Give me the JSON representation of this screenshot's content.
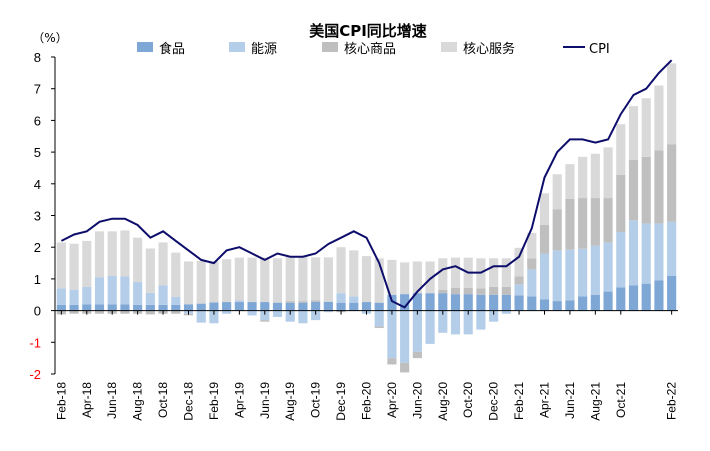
{
  "chart_data": {
    "type": "bar",
    "title": "美国CPI同比增速",
    "unit_label": "（%）",
    "ylim": [
      -2,
      8
    ],
    "yticks": [
      "-2",
      "-1",
      "0",
      "1",
      "2",
      "3",
      "4",
      "5",
      "6",
      "7",
      "8"
    ],
    "negative_tick_color": "#ff0000",
    "x": [
      "Feb-18",
      "Mar-18",
      "Apr-18",
      "May-18",
      "Jun-18",
      "Jul-18",
      "Aug-18",
      "Sep-18",
      "Oct-18",
      "Nov-18",
      "Dec-18",
      "Jan-19",
      "Feb-19",
      "Mar-19",
      "Apr-19",
      "May-19",
      "Jun-19",
      "Jul-19",
      "Aug-19",
      "Sep-19",
      "Oct-19",
      "Nov-19",
      "Dec-19",
      "Jan-20",
      "Feb-20",
      "Mar-20",
      "Apr-20",
      "May-20",
      "Jun-20",
      "Jul-20",
      "Aug-20",
      "Sep-20",
      "Oct-20",
      "Nov-20",
      "Dec-20",
      "Jan-21",
      "Feb-21",
      "Mar-21",
      "Apr-21",
      "May-21",
      "Jun-21",
      "Jul-21",
      "Aug-21",
      "Sep-21",
      "Oct-21",
      "Nov-21",
      "Dec-21",
      "Jan-22",
      "Feb-22"
    ],
    "xtick_labels": [
      "Feb-18",
      "Apr-18",
      "Jun-18",
      "Aug-18",
      "Oct-18",
      "Dec-18",
      "Feb-19",
      "Apr-19",
      "Jun-19",
      "Aug-19",
      "Oct-19",
      "Dec-19",
      "Feb-20",
      "Apr-20",
      "Jun-20",
      "Aug-20",
      "Oct-20",
      "Dec-20",
      "Feb-21",
      "Apr-21",
      "Jun-21",
      "Aug-21",
      "Oct-21",
      "Feb-22"
    ],
    "stacked": true,
    "series": [
      {
        "name": "食品",
        "type": "bar",
        "color": "#7fa7d6",
        "values": [
          0.18,
          0.18,
          0.2,
          0.2,
          0.2,
          0.2,
          0.18,
          0.18,
          0.18,
          0.18,
          0.2,
          0.22,
          0.26,
          0.27,
          0.27,
          0.27,
          0.27,
          0.25,
          0.25,
          0.25,
          0.28,
          0.28,
          0.25,
          0.25,
          0.27,
          0.25,
          0.5,
          0.52,
          0.55,
          0.55,
          0.55,
          0.52,
          0.52,
          0.5,
          0.5,
          0.5,
          0.48,
          0.45,
          0.35,
          0.3,
          0.32,
          0.45,
          0.5,
          0.6,
          0.73,
          0.8,
          0.85,
          0.95,
          1.1
        ]
      },
      {
        "name": "能源",
        "type": "bar",
        "color": "#b4cde9",
        "values": [
          0.52,
          0.48,
          0.55,
          0.85,
          0.9,
          0.88,
          0.72,
          0.38,
          0.62,
          0.25,
          -0.1,
          -0.38,
          -0.4,
          -0.1,
          0.05,
          -0.15,
          -0.3,
          -0.2,
          -0.35,
          -0.4,
          -0.3,
          -0.05,
          0.3,
          0.2,
          -0.1,
          -0.5,
          -1.5,
          -1.65,
          -1.3,
          -1.05,
          -0.7,
          -0.75,
          -0.75,
          -0.6,
          -0.35,
          -0.1,
          0.35,
          0.85,
          1.45,
          1.6,
          1.6,
          1.5,
          1.55,
          1.55,
          1.75,
          2.05,
          1.9,
          1.8,
          1.7
        ]
      },
      {
        "name": "核心商品",
        "type": "bar",
        "color": "#bfbfbf",
        "values": [
          -0.12,
          -0.1,
          -0.1,
          -0.1,
          -0.1,
          -0.1,
          -0.1,
          -0.12,
          -0.1,
          -0.1,
          -0.05,
          0.0,
          0.0,
          0.0,
          0.0,
          0.0,
          -0.05,
          0.0,
          0.05,
          0.05,
          0.05,
          0.0,
          -0.05,
          0.0,
          0.0,
          -0.05,
          -0.2,
          -0.3,
          -0.2,
          0.0,
          0.1,
          0.2,
          0.2,
          0.2,
          0.25,
          0.25,
          0.25,
          0.35,
          0.9,
          1.3,
          1.6,
          1.6,
          1.5,
          1.4,
          1.8,
          1.9,
          2.1,
          2.3,
          2.45
        ]
      },
      {
        "name": "核心服务",
        "type": "bar",
        "color": "#d9d9d9",
        "values": [
          1.45,
          1.45,
          1.45,
          1.45,
          1.4,
          1.45,
          1.4,
          1.4,
          1.35,
          1.4,
          1.35,
          1.35,
          1.3,
          1.35,
          1.35,
          1.4,
          1.4,
          1.4,
          1.4,
          1.4,
          1.35,
          1.4,
          1.45,
          1.45,
          1.45,
          1.4,
          1.1,
          1.0,
          1.0,
          1.0,
          1.0,
          0.95,
          0.95,
          0.95,
          0.9,
          0.9,
          0.9,
          0.8,
          1.0,
          1.1,
          1.1,
          1.3,
          1.4,
          1.6,
          1.6,
          1.7,
          1.85,
          2.05,
          2.55
        ]
      },
      {
        "name": "CPI",
        "type": "line",
        "color": "#0d0d6b",
        "values": [
          2.2,
          2.4,
          2.5,
          2.8,
          2.9,
          2.9,
          2.7,
          2.3,
          2.5,
          2.2,
          1.9,
          1.6,
          1.5,
          1.9,
          2.0,
          1.8,
          1.6,
          1.8,
          1.7,
          1.7,
          1.8,
          2.1,
          2.3,
          2.5,
          2.3,
          1.5,
          0.3,
          0.1,
          0.6,
          1.0,
          1.3,
          1.4,
          1.2,
          1.2,
          1.4,
          1.4,
          1.7,
          2.6,
          4.2,
          5.0,
          5.4,
          5.4,
          5.3,
          5.4,
          6.2,
          6.8,
          7.0,
          7.5,
          7.9
        ]
      }
    ],
    "legend": {
      "placement": "top",
      "items": [
        "食品",
        "能源",
        "核心商品",
        "核心服务",
        "CPI"
      ]
    },
    "grid": false
  }
}
